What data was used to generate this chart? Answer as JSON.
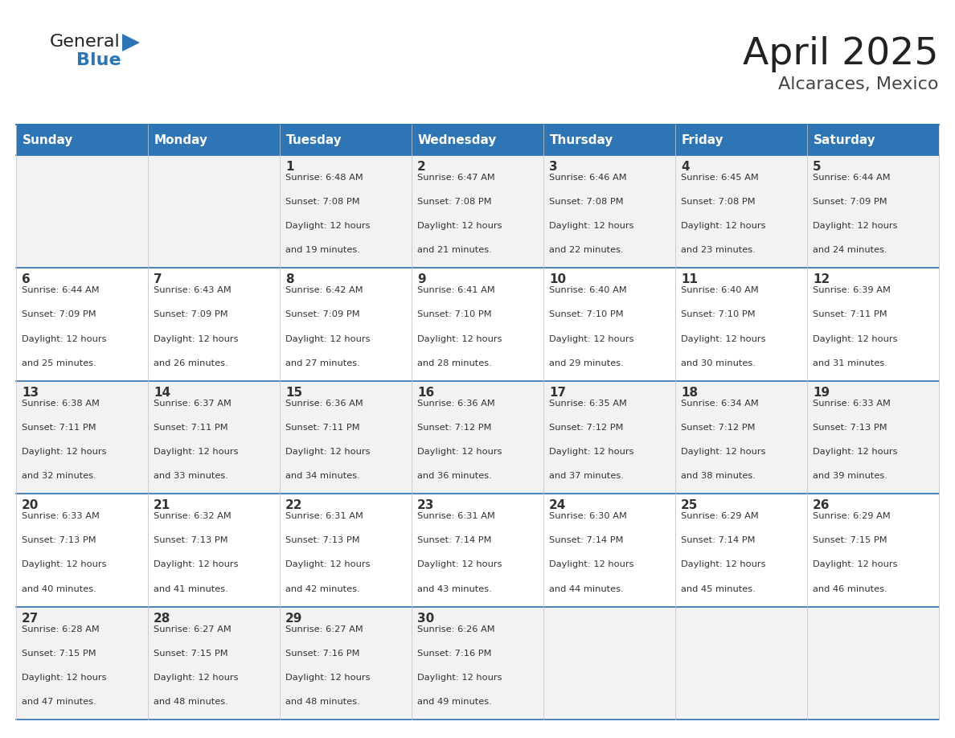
{
  "title": "April 2025",
  "subtitle": "Alcaraces, Mexico",
  "days_of_week": [
    "Sunday",
    "Monday",
    "Tuesday",
    "Wednesday",
    "Thursday",
    "Friday",
    "Saturday"
  ],
  "header_bg": "#2E75B6",
  "header_text_color": "#FFFFFF",
  "cell_bg_light": "#F2F2F2",
  "cell_bg_white": "#FFFFFF",
  "border_color": "#2E75B6",
  "text_color": "#333333",
  "title_color": "#222222",
  "subtitle_color": "#444444",
  "calendar": [
    [
      {
        "day": "",
        "sunrise": "",
        "sunset": "",
        "daylight_hours": "",
        "daylight_minutes": ""
      },
      {
        "day": "",
        "sunrise": "",
        "sunset": "",
        "daylight_hours": "",
        "daylight_minutes": ""
      },
      {
        "day": "1",
        "sunrise": "6:48 AM",
        "sunset": "7:08 PM",
        "daylight_hours": "12",
        "daylight_minutes": "19"
      },
      {
        "day": "2",
        "sunrise": "6:47 AM",
        "sunset": "7:08 PM",
        "daylight_hours": "12",
        "daylight_minutes": "21"
      },
      {
        "day": "3",
        "sunrise": "6:46 AM",
        "sunset": "7:08 PM",
        "daylight_hours": "12",
        "daylight_minutes": "22"
      },
      {
        "day": "4",
        "sunrise": "6:45 AM",
        "sunset": "7:08 PM",
        "daylight_hours": "12",
        "daylight_minutes": "23"
      },
      {
        "day": "5",
        "sunrise": "6:44 AM",
        "sunset": "7:09 PM",
        "daylight_hours": "12",
        "daylight_minutes": "24"
      }
    ],
    [
      {
        "day": "6",
        "sunrise": "6:44 AM",
        "sunset": "7:09 PM",
        "daylight_hours": "12",
        "daylight_minutes": "25"
      },
      {
        "day": "7",
        "sunrise": "6:43 AM",
        "sunset": "7:09 PM",
        "daylight_hours": "12",
        "daylight_minutes": "26"
      },
      {
        "day": "8",
        "sunrise": "6:42 AM",
        "sunset": "7:09 PM",
        "daylight_hours": "12",
        "daylight_minutes": "27"
      },
      {
        "day": "9",
        "sunrise": "6:41 AM",
        "sunset": "7:10 PM",
        "daylight_hours": "12",
        "daylight_minutes": "28"
      },
      {
        "day": "10",
        "sunrise": "6:40 AM",
        "sunset": "7:10 PM",
        "daylight_hours": "12",
        "daylight_minutes": "29"
      },
      {
        "day": "11",
        "sunrise": "6:40 AM",
        "sunset": "7:10 PM",
        "daylight_hours": "12",
        "daylight_minutes": "30"
      },
      {
        "day": "12",
        "sunrise": "6:39 AM",
        "sunset": "7:11 PM",
        "daylight_hours": "12",
        "daylight_minutes": "31"
      }
    ],
    [
      {
        "day": "13",
        "sunrise": "6:38 AM",
        "sunset": "7:11 PM",
        "daylight_hours": "12",
        "daylight_minutes": "32"
      },
      {
        "day": "14",
        "sunrise": "6:37 AM",
        "sunset": "7:11 PM",
        "daylight_hours": "12",
        "daylight_minutes": "33"
      },
      {
        "day": "15",
        "sunrise": "6:36 AM",
        "sunset": "7:11 PM",
        "daylight_hours": "12",
        "daylight_minutes": "34"
      },
      {
        "day": "16",
        "sunrise": "6:36 AM",
        "sunset": "7:12 PM",
        "daylight_hours": "12",
        "daylight_minutes": "36"
      },
      {
        "day": "17",
        "sunrise": "6:35 AM",
        "sunset": "7:12 PM",
        "daylight_hours": "12",
        "daylight_minutes": "37"
      },
      {
        "day": "18",
        "sunrise": "6:34 AM",
        "sunset": "7:12 PM",
        "daylight_hours": "12",
        "daylight_minutes": "38"
      },
      {
        "day": "19",
        "sunrise": "6:33 AM",
        "sunset": "7:13 PM",
        "daylight_hours": "12",
        "daylight_minutes": "39"
      }
    ],
    [
      {
        "day": "20",
        "sunrise": "6:33 AM",
        "sunset": "7:13 PM",
        "daylight_hours": "12",
        "daylight_minutes": "40"
      },
      {
        "day": "21",
        "sunrise": "6:32 AM",
        "sunset": "7:13 PM",
        "daylight_hours": "12",
        "daylight_minutes": "41"
      },
      {
        "day": "22",
        "sunrise": "6:31 AM",
        "sunset": "7:13 PM",
        "daylight_hours": "12",
        "daylight_minutes": "42"
      },
      {
        "day": "23",
        "sunrise": "6:31 AM",
        "sunset": "7:14 PM",
        "daylight_hours": "12",
        "daylight_minutes": "43"
      },
      {
        "day": "24",
        "sunrise": "6:30 AM",
        "sunset": "7:14 PM",
        "daylight_hours": "12",
        "daylight_minutes": "44"
      },
      {
        "day": "25",
        "sunrise": "6:29 AM",
        "sunset": "7:14 PM",
        "daylight_hours": "12",
        "daylight_minutes": "45"
      },
      {
        "day": "26",
        "sunrise": "6:29 AM",
        "sunset": "7:15 PM",
        "daylight_hours": "12",
        "daylight_minutes": "46"
      }
    ],
    [
      {
        "day": "27",
        "sunrise": "6:28 AM",
        "sunset": "7:15 PM",
        "daylight_hours": "12",
        "daylight_minutes": "47"
      },
      {
        "day": "28",
        "sunrise": "6:27 AM",
        "sunset": "7:15 PM",
        "daylight_hours": "12",
        "daylight_minutes": "48"
      },
      {
        "day": "29",
        "sunrise": "6:27 AM",
        "sunset": "7:16 PM",
        "daylight_hours": "12",
        "daylight_minutes": "48"
      },
      {
        "day": "30",
        "sunrise": "6:26 AM",
        "sunset": "7:16 PM",
        "daylight_hours": "12",
        "daylight_minutes": "49"
      },
      {
        "day": "",
        "sunrise": "",
        "sunset": "",
        "daylight_hours": "",
        "daylight_minutes": ""
      },
      {
        "day": "",
        "sunrise": "",
        "sunset": "",
        "daylight_hours": "",
        "daylight_minutes": ""
      },
      {
        "day": "",
        "sunrise": "",
        "sunset": "",
        "daylight_hours": "",
        "daylight_minutes": ""
      }
    ]
  ],
  "logo_text1": "General",
  "logo_text2": "Blue",
  "logo_color1": "#222222",
  "logo_color2": "#2E75B6",
  "logo_triangle_color": "#2E75B6"
}
